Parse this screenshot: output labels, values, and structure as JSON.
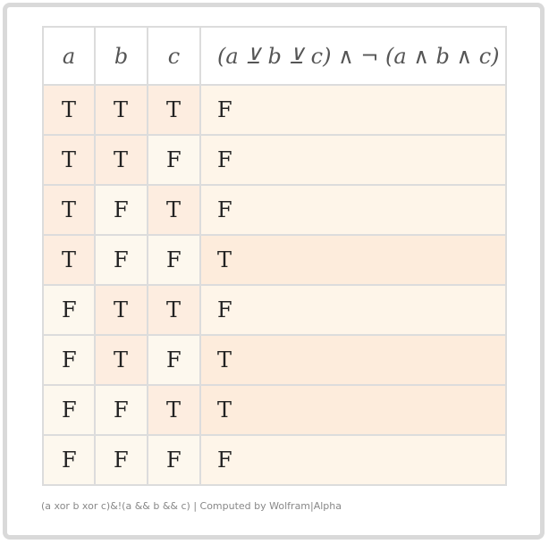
{
  "table": {
    "header": [
      "a",
      "b",
      "c",
      "(a ⊻ b ⊻ c) ∧ ¬ (a ∧ b ∧ c)"
    ],
    "rows": [
      [
        "T",
        "T",
        "T",
        "F"
      ],
      [
        "T",
        "T",
        "F",
        "F"
      ],
      [
        "T",
        "F",
        "T",
        "F"
      ],
      [
        "T",
        "F",
        "F",
        "T"
      ],
      [
        "F",
        "T",
        "T",
        "F"
      ],
      [
        "F",
        "T",
        "F",
        "T"
      ],
      [
        "F",
        "F",
        "T",
        "T"
      ],
      [
        "F",
        "F",
        "F",
        "F"
      ]
    ]
  },
  "footer": "(a xor b xor c)&!(a && b && c) | Computed by Wolfram|Alpha"
}
